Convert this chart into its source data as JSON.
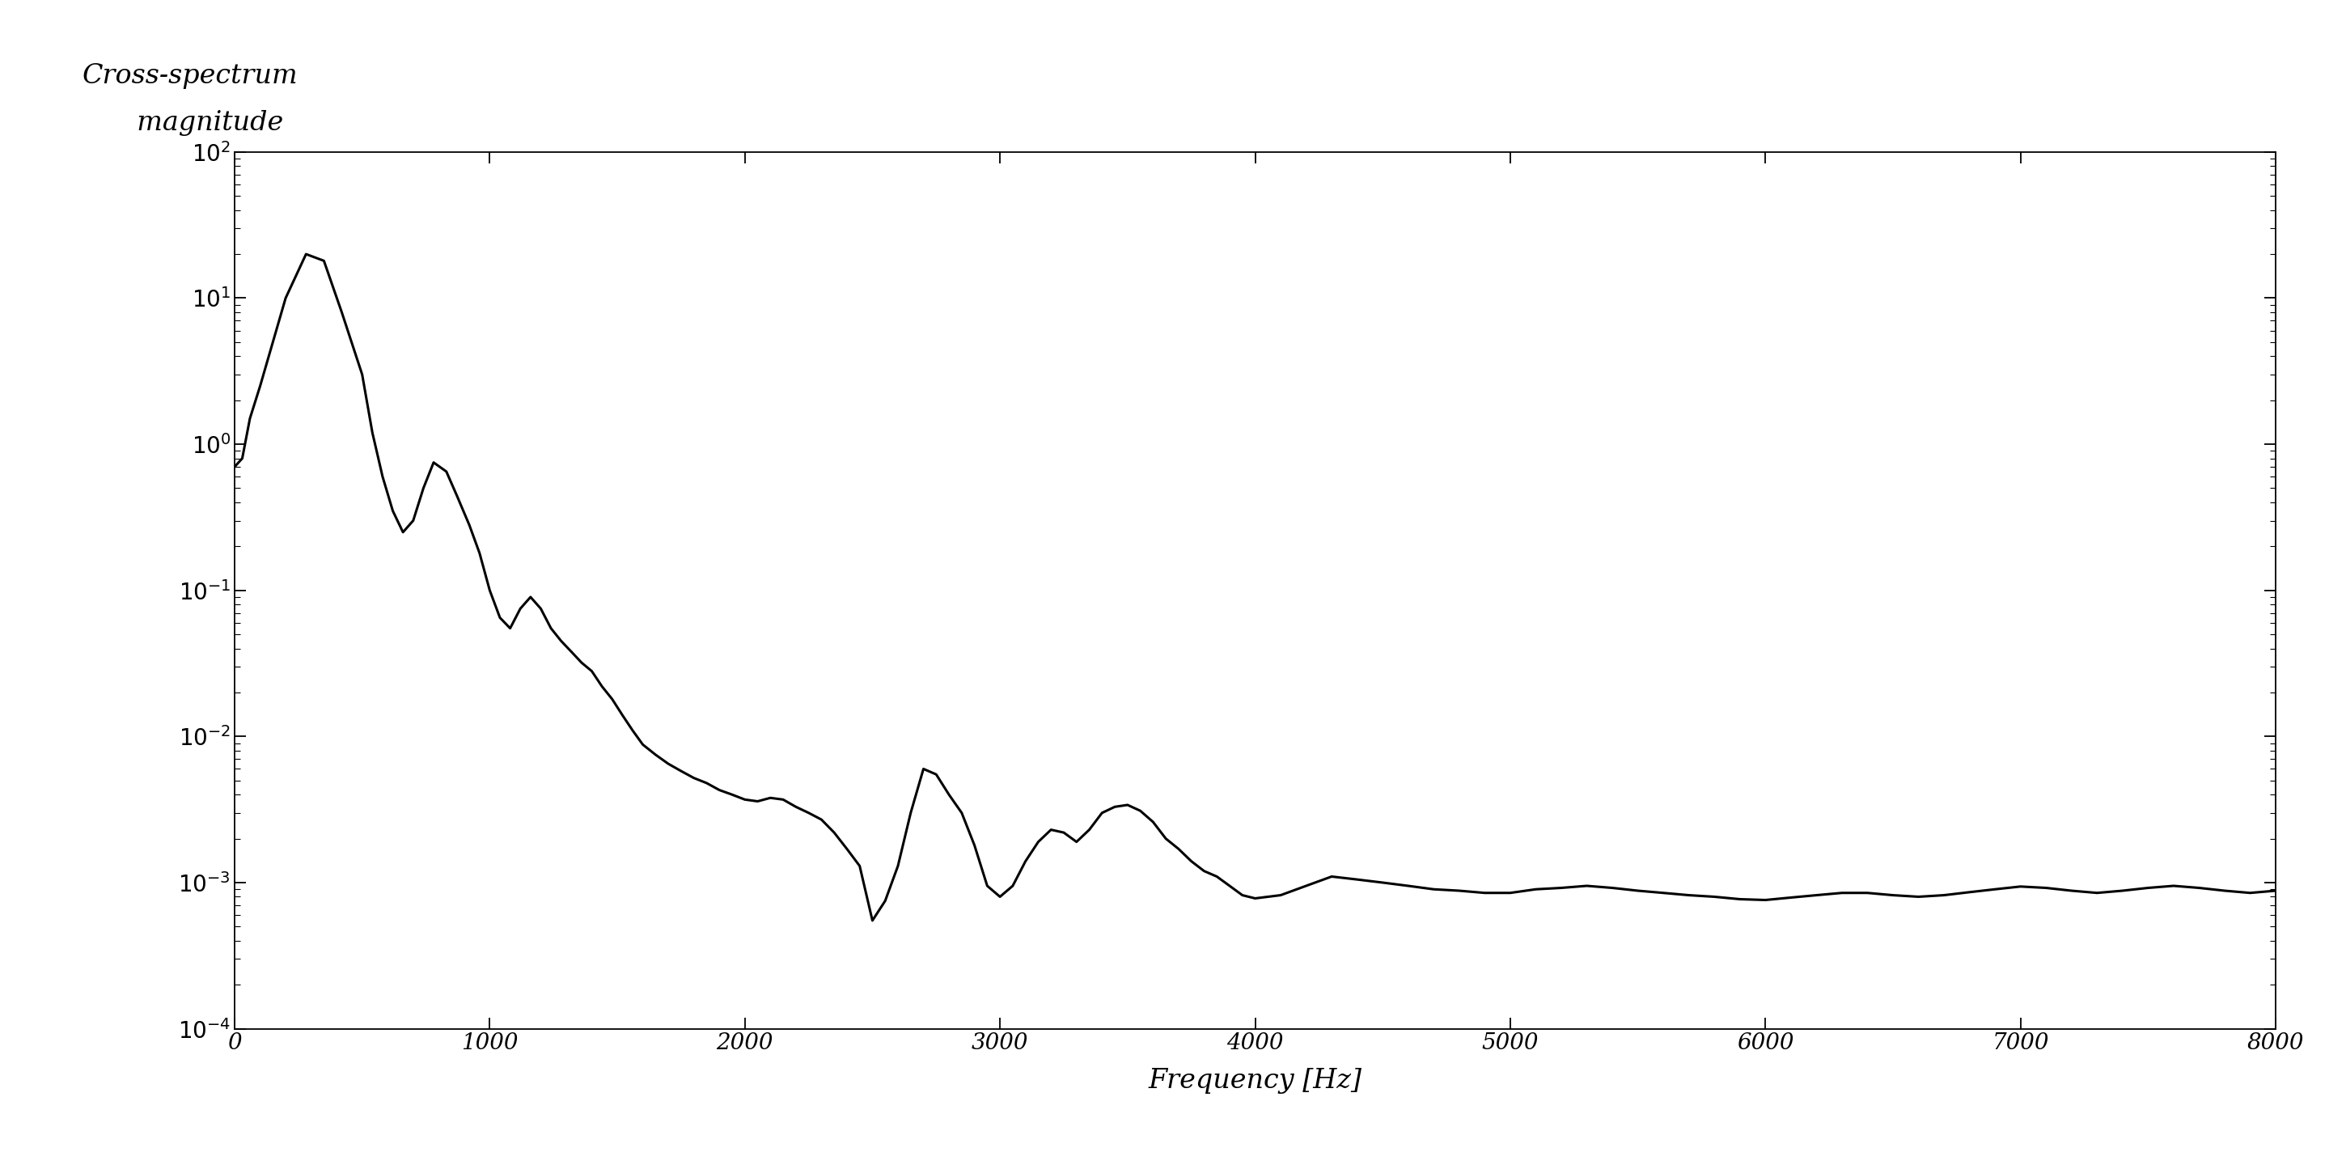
{
  "title": "",
  "ylabel_line1": "Cross-spectrum",
  "ylabel_line2": "  magnitude",
  "xlabel": "Frequency [Hz]",
  "xlim": [
    0,
    8000
  ],
  "ylim": [
    0.0001,
    100.0
  ],
  "xticks": [
    0,
    1000,
    2000,
    3000,
    4000,
    5000,
    6000,
    7000,
    8000
  ],
  "ytick_exponents": [
    -4,
    -3,
    -2,
    -1,
    0,
    1,
    2
  ],
  "line_color": "#000000",
  "line_width": 2.2,
  "bg_color": "#ffffff",
  "ylabel_fontsize": 24,
  "xlabel_fontsize": 24,
  "tick_fontsize": 20,
  "xy_data": [
    [
      0,
      0.7
    ],
    [
      30,
      0.8
    ],
    [
      60,
      1.5
    ],
    [
      100,
      2.5
    ],
    [
      150,
      5.0
    ],
    [
      200,
      10.0
    ],
    [
      280,
      20.0
    ],
    [
      350,
      18.0
    ],
    [
      420,
      8.0
    ],
    [
      500,
      3.0
    ],
    [
      540,
      1.2
    ],
    [
      580,
      0.6
    ],
    [
      620,
      0.35
    ],
    [
      660,
      0.25
    ],
    [
      700,
      0.3
    ],
    [
      740,
      0.5
    ],
    [
      780,
      0.75
    ],
    [
      830,
      0.65
    ],
    [
      870,
      0.45
    ],
    [
      920,
      0.28
    ],
    [
      960,
      0.18
    ],
    [
      1000,
      0.1
    ],
    [
      1040,
      0.065
    ],
    [
      1080,
      0.055
    ],
    [
      1120,
      0.075
    ],
    [
      1160,
      0.09
    ],
    [
      1200,
      0.075
    ],
    [
      1240,
      0.055
    ],
    [
      1280,
      0.045
    ],
    [
      1320,
      0.038
    ],
    [
      1360,
      0.032
    ],
    [
      1400,
      0.028
    ],
    [
      1440,
      0.022
    ],
    [
      1480,
      0.018
    ],
    [
      1520,
      0.014
    ],
    [
      1560,
      0.011
    ],
    [
      1600,
      0.0088
    ],
    [
      1650,
      0.0075
    ],
    [
      1700,
      0.0065
    ],
    [
      1750,
      0.0058
    ],
    [
      1800,
      0.0052
    ],
    [
      1850,
      0.0048
    ],
    [
      1900,
      0.0043
    ],
    [
      1950,
      0.004
    ],
    [
      2000,
      0.0037
    ],
    [
      2050,
      0.0036
    ],
    [
      2100,
      0.0038
    ],
    [
      2150,
      0.0037
    ],
    [
      2200,
      0.0033
    ],
    [
      2250,
      0.003
    ],
    [
      2300,
      0.0027
    ],
    [
      2350,
      0.0022
    ],
    [
      2400,
      0.0017
    ],
    [
      2450,
      0.0013
    ],
    [
      2500,
      0.00055
    ],
    [
      2550,
      0.00075
    ],
    [
      2600,
      0.0013
    ],
    [
      2650,
      0.003
    ],
    [
      2700,
      0.006
    ],
    [
      2750,
      0.0055
    ],
    [
      2800,
      0.004
    ],
    [
      2850,
      0.003
    ],
    [
      2900,
      0.0018
    ],
    [
      2950,
      0.00095
    ],
    [
      3000,
      0.0008
    ],
    [
      3050,
      0.00095
    ],
    [
      3100,
      0.0014
    ],
    [
      3150,
      0.0019
    ],
    [
      3200,
      0.0023
    ],
    [
      3250,
      0.0022
    ],
    [
      3300,
      0.0019
    ],
    [
      3350,
      0.0023
    ],
    [
      3400,
      0.003
    ],
    [
      3450,
      0.0033
    ],
    [
      3500,
      0.0034
    ],
    [
      3550,
      0.0031
    ],
    [
      3600,
      0.0026
    ],
    [
      3650,
      0.002
    ],
    [
      3700,
      0.0017
    ],
    [
      3750,
      0.0014
    ],
    [
      3800,
      0.0012
    ],
    [
      3850,
      0.0011
    ],
    [
      3900,
      0.00095
    ],
    [
      3950,
      0.00082
    ],
    [
      4000,
      0.00078
    ],
    [
      4100,
      0.00082
    ],
    [
      4200,
      0.00095
    ],
    [
      4300,
      0.0011
    ],
    [
      4400,
      0.00105
    ],
    [
      4500,
      0.001
    ],
    [
      4600,
      0.00095
    ],
    [
      4700,
      0.0009
    ],
    [
      4800,
      0.00088
    ],
    [
      4900,
      0.00085
    ],
    [
      5000,
      0.00085
    ],
    [
      5100,
      0.0009
    ],
    [
      5200,
      0.00092
    ],
    [
      5300,
      0.00095
    ],
    [
      5400,
      0.00092
    ],
    [
      5500,
      0.00088
    ],
    [
      5600,
      0.00085
    ],
    [
      5700,
      0.00082
    ],
    [
      5800,
      0.0008
    ],
    [
      5900,
      0.00077
    ],
    [
      6000,
      0.00076
    ],
    [
      6100,
      0.00079
    ],
    [
      6200,
      0.00082
    ],
    [
      6300,
      0.00085
    ],
    [
      6400,
      0.00085
    ],
    [
      6500,
      0.00082
    ],
    [
      6600,
      0.0008
    ],
    [
      6700,
      0.00082
    ],
    [
      6800,
      0.00086
    ],
    [
      6900,
      0.0009
    ],
    [
      7000,
      0.00094
    ],
    [
      7100,
      0.00092
    ],
    [
      7200,
      0.00088
    ],
    [
      7300,
      0.00085
    ],
    [
      7400,
      0.00088
    ],
    [
      7500,
      0.00092
    ],
    [
      7600,
      0.00095
    ],
    [
      7700,
      0.00092
    ],
    [
      7800,
      0.00088
    ],
    [
      7900,
      0.00085
    ],
    [
      8000,
      0.00088
    ]
  ]
}
